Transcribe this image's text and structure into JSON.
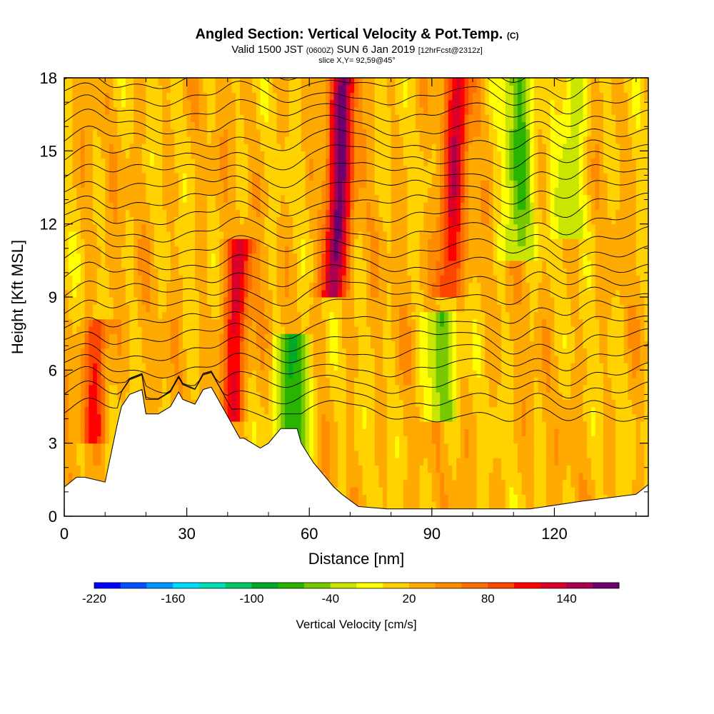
{
  "header": {
    "title": "Angled Section: Vertical Velocity & Pot.Temp.",
    "title_unit": "(C)",
    "valid_prefix": "Valid 1500 JST",
    "valid_zulu": "(0600Z)",
    "valid_date": "SUN 6 Jan 2019",
    "forecast": "[12hrFcst@2312z]",
    "slice": "slice X,Y= 92,59@45°"
  },
  "chart_data": {
    "type": "heatmap",
    "xlabel": "Distance [nm]",
    "ylabel": "Height [Kft MSL]",
    "xlim": [
      0,
      143
    ],
    "ylim": [
      0,
      18
    ],
    "x_ticks": [
      0,
      30,
      60,
      90,
      120
    ],
    "y_ticks": [
      0,
      3,
      6,
      9,
      12,
      15,
      18
    ],
    "colorbar": {
      "label": "Vertical Velocity [cm/s]",
      "min": -220,
      "max": 170,
      "step": 20,
      "tick_labels": [
        -220,
        -160,
        -100,
        -40,
        20,
        80,
        140
      ],
      "colors": [
        "#0000ff",
        "#0050ff",
        "#0096ff",
        "#00dcff",
        "#00dcb4",
        "#00c864",
        "#00aa28",
        "#28b400",
        "#78c800",
        "#c8e600",
        "#ffff00",
        "#ffd200",
        "#ffaa00",
        "#ff8c00",
        "#ff6e00",
        "#ff4600",
        "#ff0000",
        "#dc0028",
        "#aa0050",
        "#6e006e"
      ]
    },
    "updraft_cores": [
      {
        "x": 7,
        "y_bottom": 4,
        "y_top": 7,
        "value": 100
      },
      {
        "x": 41,
        "y_bottom": 5,
        "y_top": 10.5,
        "value": 120
      },
      {
        "x": 66,
        "y_bottom": 10,
        "y_top": 18,
        "value": 160
      },
      {
        "x": 94,
        "y_bottom": 10,
        "y_top": 18,
        "value": 120
      }
    ],
    "downdraft_bands": [
      {
        "x": 56,
        "y_bottom": 3,
        "y_top": 7,
        "value": -100
      },
      {
        "x": 92,
        "y_bottom": 4.5,
        "y_top": 8,
        "value": -60
      },
      {
        "x": 111,
        "y_bottom": 11,
        "y_top": 18,
        "value": -60
      },
      {
        "x": 124,
        "y_bottom": 12,
        "y_top": 18,
        "value": -40
      }
    ],
    "terrain": {
      "x": [
        0,
        3,
        5,
        10,
        13,
        14,
        16,
        19,
        20,
        23,
        26,
        28,
        29,
        32,
        34,
        36,
        37,
        42,
        43,
        44,
        46,
        48,
        50,
        52,
        53,
        57,
        58,
        61,
        64,
        66,
        68,
        72,
        79,
        86,
        100,
        114,
        126,
        140,
        143
      ],
      "y": [
        1.2,
        1.6,
        1.6,
        1.4,
        3.8,
        4.5,
        5,
        5.2,
        4.2,
        4.2,
        4.5,
        5.1,
        4.8,
        4.6,
        5.2,
        5.3,
        5,
        3.5,
        3.2,
        3.2,
        3.0,
        2.8,
        3.0,
        3.4,
        3.6,
        3.6,
        3.0,
        2.2,
        1.6,
        1.2,
        0.9,
        0.4,
        0.3,
        0.3,
        0.3,
        0.3,
        0.6,
        0.9,
        1.3
      ]
    }
  }
}
